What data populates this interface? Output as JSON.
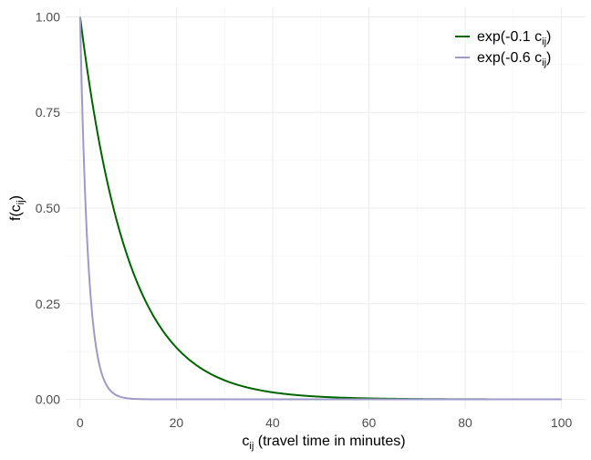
{
  "chart_data": {
    "type": "line",
    "x_label": {
      "base": "c",
      "sub": "ij",
      "rest": " (travel time in minutes)"
    },
    "y_label": {
      "base": "f(c",
      "sub": "ij",
      "rest": ")"
    },
    "x_ticks": [
      0,
      20,
      40,
      60,
      80,
      100
    ],
    "y_ticks": [
      "0.00",
      "0.25",
      "0.50",
      "0.75",
      "1.00"
    ],
    "xlim": [
      -3,
      105
    ],
    "ylim": [
      -0.025,
      1.025
    ],
    "grid": true,
    "legend_position": "top-right",
    "series": [
      {
        "name": {
          "base": "exp(-0.1 c",
          "sub": "ij",
          "rest": ")"
        },
        "rate": 0.1,
        "x_min": 0,
        "x_max": 100,
        "color": "#006400"
      },
      {
        "name": {
          "base": "exp(-0.6 c",
          "sub": "ij",
          "rest": ")"
        },
        "rate": 0.6,
        "x_min": 0,
        "x_max": 100,
        "color": "#9e9ac8"
      }
    ]
  }
}
